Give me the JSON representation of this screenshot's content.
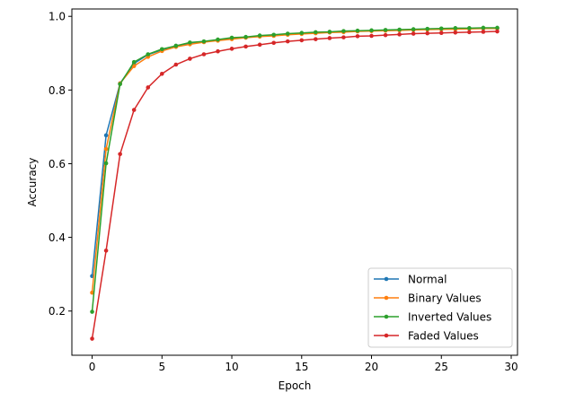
{
  "chart_data": {
    "type": "line",
    "title": "",
    "xlabel": "Epoch",
    "ylabel": "Accuracy",
    "xlim": [
      -1.45,
      30.45
    ],
    "ylim": [
      0.08,
      1.02
    ],
    "xticks": [
      0,
      5,
      10,
      15,
      20,
      25,
      30
    ],
    "yticks": [
      0.2,
      0.4,
      0.6,
      0.8,
      1.0
    ],
    "xtick_labels": [
      "0",
      "5",
      "10",
      "15",
      "20",
      "25",
      "30"
    ],
    "ytick_labels": [
      "0.2",
      "0.4",
      "0.6",
      "0.8",
      "1.0"
    ],
    "grid": false,
    "legend_position": "lower right",
    "x": [
      0,
      1,
      2,
      3,
      4,
      5,
      6,
      7,
      8,
      9,
      10,
      11,
      12,
      13,
      14,
      15,
      16,
      17,
      18,
      19,
      20,
      21,
      22,
      23,
      24,
      25,
      26,
      27,
      28,
      29
    ],
    "series": [
      {
        "name": "Normal",
        "color": "#1f77b4",
        "values": [
          0.295,
          0.677,
          0.818,
          0.872,
          0.896,
          0.909,
          0.92,
          0.926,
          0.931,
          0.936,
          0.94,
          0.943,
          0.946,
          0.949,
          0.951,
          0.953,
          0.955,
          0.957,
          0.959,
          0.96,
          0.961,
          0.962,
          0.963,
          0.964,
          0.965,
          0.965,
          0.966,
          0.967,
          0.967,
          0.968
        ]
      },
      {
        "name": "Binary Values",
        "color": "#ff7f0e",
        "values": [
          0.25,
          0.64,
          0.818,
          0.865,
          0.89,
          0.906,
          0.917,
          0.924,
          0.93,
          0.934,
          0.938,
          0.942,
          0.945,
          0.947,
          0.95,
          0.952,
          0.954,
          0.956,
          0.957,
          0.959,
          0.96,
          0.961,
          0.962,
          0.963,
          0.964,
          0.965,
          0.965,
          0.966,
          0.967,
          0.967
        ]
      },
      {
        "name": "Inverted Values",
        "color": "#2ca02c",
        "values": [
          0.198,
          0.601,
          0.816,
          0.876,
          0.897,
          0.911,
          0.92,
          0.929,
          0.932,
          0.937,
          0.942,
          0.944,
          0.948,
          0.95,
          0.953,
          0.955,
          0.957,
          0.958,
          0.96,
          0.961,
          0.962,
          0.963,
          0.964,
          0.965,
          0.966,
          0.967,
          0.968,
          0.968,
          0.969,
          0.969
        ]
      },
      {
        "name": "Faded Values",
        "color": "#d62728",
        "values": [
          0.125,
          0.364,
          0.626,
          0.746,
          0.807,
          0.844,
          0.869,
          0.885,
          0.897,
          0.905,
          0.912,
          0.918,
          0.923,
          0.928,
          0.932,
          0.935,
          0.938,
          0.941,
          0.943,
          0.946,
          0.947,
          0.949,
          0.951,
          0.953,
          0.954,
          0.955,
          0.956,
          0.957,
          0.958,
          0.959
        ]
      }
    ]
  }
}
